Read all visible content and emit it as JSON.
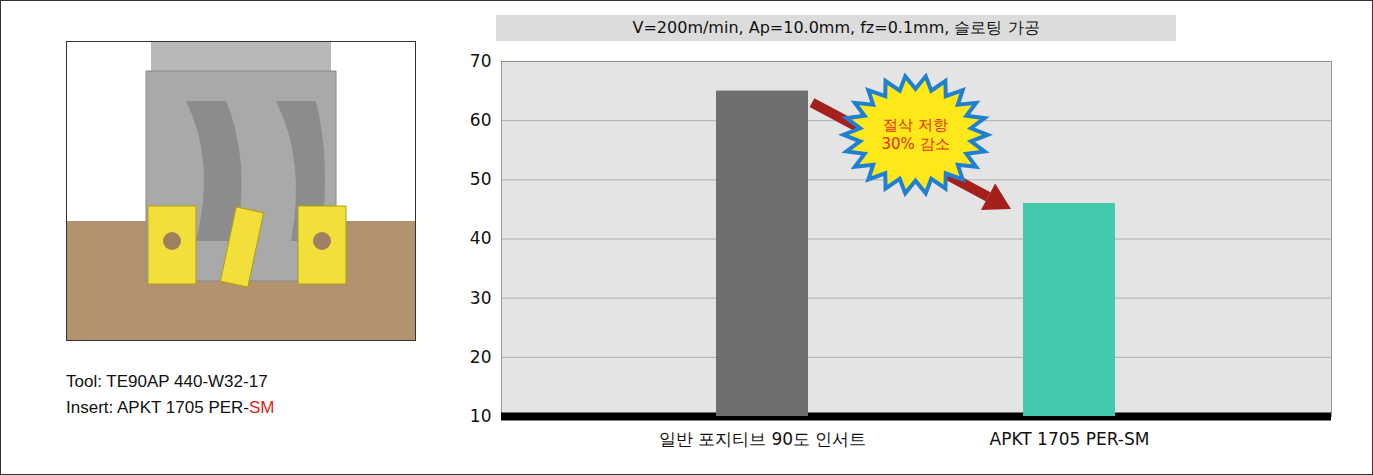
{
  "chart_data": {
    "type": "bar",
    "title": "V=200m/min, Ap=10.0mm, fz=0.1mm, 슬로팅 가공",
    "categories": [
      "일반 포지티브 90도 인서트",
      "APKT 1705 PER-SM"
    ],
    "values": [
      65,
      46
    ],
    "colors": [
      "#6f6f6f",
      "#45c9ad"
    ],
    "ylim": [
      10,
      70
    ],
    "yticks": [
      10,
      20,
      30,
      40,
      50,
      60,
      70
    ],
    "grid": true,
    "annotation": [
      "절삭 저항",
      "30% 감소"
    ]
  },
  "tool_panel": {
    "tool": "Tool: TE90AP 440-W32-17",
    "insert": {
      "text": "Insert: APKT 1705 PER-",
      "highlight": "SM"
    }
  }
}
